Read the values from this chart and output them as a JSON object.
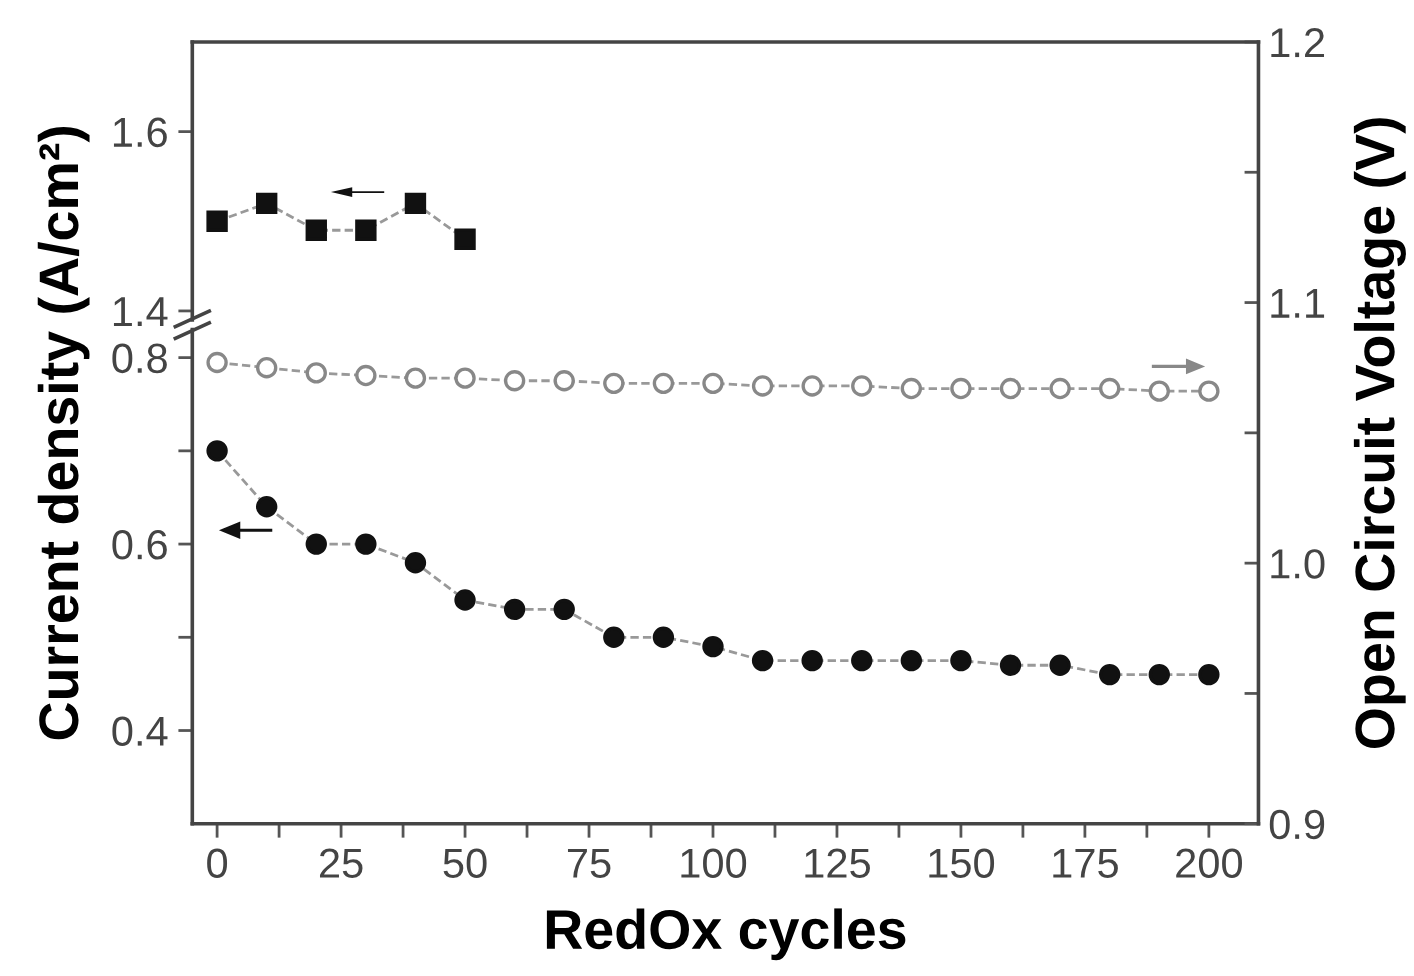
{
  "chart_data": [
    {
      "type": "line",
      "x": [
        0,
        10,
        20,
        30,
        40,
        50
      ],
      "xlim": [
        -5,
        210
      ],
      "ylim": [
        1.39,
        1.7
      ],
      "yticks": [
        1.4,
        1.6
      ],
      "tick_labels": "y",
      "grid": false,
      "legend": false,
      "line_style": "dashed",
      "series": [
        {
          "color": "#111111",
          "marker": "square",
          "values": [
            1.5,
            1.52,
            1.49,
            1.49,
            1.52,
            1.48
          ]
        }
      ]
    },
    {
      "type": "line",
      "x": [
        0,
        10,
        20,
        30,
        40,
        50,
        60,
        70,
        80,
        90,
        100,
        110,
        120,
        130,
        140,
        150,
        160,
        170,
        180,
        190,
        200
      ],
      "xlim": [
        -5,
        210
      ],
      "ylim": [
        0.3,
        0.83
      ],
      "xticks": [
        0,
        {
          "value": 12.5,
          "label": null
        },
        25,
        {
          "value": 37.5,
          "label": null
        },
        50,
        {
          "value": 62.5,
          "label": null
        },
        75,
        {
          "value": 87.5,
          "label": null
        },
        100,
        {
          "value": 112.5,
          "label": null
        },
        125,
        {
          "value": 137.5,
          "label": null
        },
        150,
        {
          "value": 162.5,
          "label": null
        },
        175,
        {
          "value": 187.5,
          "label": null
        },
        200
      ],
      "yticks": [
        0.4,
        {
          "value": 0.5,
          "label": null
        },
        0.6,
        {
          "value": 0.7,
          "label": null
        },
        0.8
      ],
      "y2lim": [
        0.9,
        1.2
      ],
      "y2ticks": [
        0.9,
        {
          "value": 0.95,
          "label": null
        },
        {
          "value": 1.0,
          "label": "1.0"
        },
        {
          "value": 1.05,
          "label": null
        },
        1.1,
        {
          "value": 1.15,
          "label": null
        },
        1.2
      ],
      "xlabel": "RedOx cycles",
      "ylabel": "Current density (A/cm²)",
      "y2label": "Open Circuit Voltage (V)",
      "grid": false,
      "legend": false,
      "line_style": "dashed",
      "series": [
        {
          "color": "#111111",
          "marker": "circle",
          "values": [
            0.7,
            0.64,
            0.6,
            0.6,
            0.58,
            0.54,
            0.53,
            0.53,
            0.5,
            0.5,
            0.49,
            0.475,
            0.475,
            0.475,
            0.475,
            0.475,
            0.47,
            0.47,
            0.46,
            0.46,
            0.46
          ]
        },
        {
          "color": "#888888",
          "marker": "circle",
          "axis": "y2",
          "values": [
            1.077,
            1.075,
            1.073,
            1.072,
            1.071,
            1.071,
            1.07,
            1.07,
            1.069,
            1.069,
            1.069,
            1.068,
            1.068,
            1.068,
            1.067,
            1.067,
            1.067,
            1.067,
            1.067,
            1.066,
            1.066
          ]
        }
      ]
    }
  ]
}
